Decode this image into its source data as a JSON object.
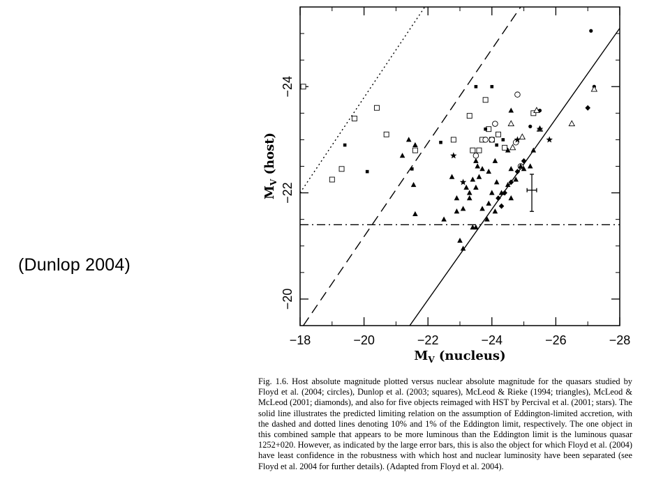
{
  "side_label": "(Dunlop 2004)",
  "chart_data": {
    "type": "scatter",
    "xlabel": {
      "main": "M",
      "sub": "V",
      "rest": " (nucleus)"
    },
    "ylabel": {
      "main": "M",
      "sub": "V",
      "rest": " (host)"
    },
    "xlim": [
      -18,
      -28
    ],
    "ylim": [
      -19.5,
      -25.5
    ],
    "x_ticks": [
      -18,
      -20,
      -22,
      -24,
      -26,
      -28
    ],
    "x_tick_labels": [
      "−18",
      "−20",
      "−22",
      "−24",
      "−26",
      "−28"
    ],
    "y_ticks": [
      -20,
      -22,
      -24
    ],
    "y_tick_labels": [
      "−20",
      "−22",
      "−24"
    ],
    "lines": [
      {
        "style": "solid",
        "points": [
          [
            -21.43,
            -19.5
          ],
          [
            -28.0,
            -25.1
          ]
        ]
      },
      {
        "style": "dashed",
        "points": [
          [
            -18.1,
            -19.5
          ],
          [
            -24.9,
            -25.5
          ]
        ]
      },
      {
        "style": "dotted",
        "points": [
          [
            -18.0,
            -22.0
          ],
          [
            -21.9,
            -25.5
          ]
        ]
      },
      {
        "style": "dashdot",
        "points": [
          [
            -18.0,
            -21.4
          ],
          [
            -28.0,
            -21.4
          ]
        ]
      }
    ],
    "series": [
      {
        "marker": "open-square",
        "points": [
          [
            -18.1,
            -24.0
          ],
          [
            -19.0,
            -22.25
          ],
          [
            -19.3,
            -22.45
          ],
          [
            -19.7,
            -23.4
          ],
          [
            -20.4,
            -23.6
          ],
          [
            -20.7,
            -23.1
          ],
          [
            -21.6,
            -22.8
          ],
          [
            -22.8,
            -23.0
          ],
          [
            -23.3,
            -23.45
          ],
          [
            -23.8,
            -23.75
          ],
          [
            -23.9,
            -23.2
          ],
          [
            -23.7,
            -23.0
          ],
          [
            -23.4,
            -22.8
          ],
          [
            -23.6,
            -22.8
          ],
          [
            -24.0,
            -23.0
          ],
          [
            -24.2,
            -23.1
          ],
          [
            -24.4,
            -22.85
          ],
          [
            -25.3,
            -23.5
          ]
        ]
      },
      {
        "marker": "filled-square",
        "points": [
          [
            -19.4,
            -22.9
          ],
          [
            -20.1,
            -22.4
          ],
          [
            -21.5,
            -22.45
          ],
          [
            -22.4,
            -22.95
          ],
          [
            -23.5,
            -24.0
          ],
          [
            -24.0,
            -24.0
          ],
          [
            -23.8,
            -23.2
          ],
          [
            -24.15,
            -22.9
          ],
          [
            -24.35,
            -23.0
          ]
        ]
      },
      {
        "marker": "open-circle",
        "points": [
          [
            -24.8,
            -23.85
          ],
          [
            -24.1,
            -23.3
          ],
          [
            -23.8,
            -23.0
          ],
          [
            -24.0,
            -23.0
          ],
          [
            -23.5,
            -22.7
          ],
          [
            -24.75,
            -22.95
          ],
          [
            -24.9,
            -22.5
          ]
        ]
      },
      {
        "marker": "filled-circle",
        "points": [
          [
            -27.1,
            -25.05
          ],
          [
            -27.2,
            -24.0
          ],
          [
            -25.5,
            -23.55
          ],
          [
            -25.2,
            -23.25
          ]
        ]
      },
      {
        "marker": "open-triangle",
        "points": [
          [
            -24.6,
            -23.3
          ],
          [
            -24.65,
            -22.85
          ],
          [
            -24.95,
            -23.05
          ],
          [
            -25.4,
            -23.55
          ],
          [
            -25.5,
            -23.2
          ],
          [
            -26.5,
            -23.3
          ],
          [
            -27.2,
            -23.95
          ]
        ]
      },
      {
        "marker": "filled-triangle",
        "points": [
          [
            -21.2,
            -22.7
          ],
          [
            -21.4,
            -23.0
          ],
          [
            -21.6,
            -22.9
          ],
          [
            -21.55,
            -22.15
          ],
          [
            -21.6,
            -21.6
          ],
          [
            -22.5,
            -21.5
          ],
          [
            -22.9,
            -21.9
          ],
          [
            -23.0,
            -21.1
          ],
          [
            -23.1,
            -20.95
          ],
          [
            -23.3,
            -22.0
          ],
          [
            -23.4,
            -22.25
          ],
          [
            -23.5,
            -22.1
          ],
          [
            -23.6,
            -22.3
          ],
          [
            -23.7,
            -21.7
          ],
          [
            -23.85,
            -21.5
          ],
          [
            -23.9,
            -21.8
          ],
          [
            -23.3,
            -21.9
          ],
          [
            -23.5,
            -22.6
          ],
          [
            -23.55,
            -22.5
          ],
          [
            -23.7,
            -22.45
          ],
          [
            -23.9,
            -22.4
          ],
          [
            -24.1,
            -22.6
          ],
          [
            -24.0,
            -22.0
          ],
          [
            -24.1,
            -21.65
          ],
          [
            -24.15,
            -22.2
          ],
          [
            -24.3,
            -22.0
          ],
          [
            -24.5,
            -22.15
          ],
          [
            -24.6,
            -22.45
          ],
          [
            -24.6,
            -21.9
          ],
          [
            -24.75,
            -22.25
          ],
          [
            -24.9,
            -22.5
          ],
          [
            -25.0,
            -22.45
          ],
          [
            -25.3,
            -22.8
          ],
          [
            -25.2,
            -22.5
          ],
          [
            -24.6,
            -23.55
          ],
          [
            -24.5,
            -22.8
          ],
          [
            -23.4,
            -21.35
          ],
          [
            -23.5,
            -21.35
          ],
          [
            -23.2,
            -22.1
          ],
          [
            -23.1,
            -21.7
          ],
          [
            -22.75,
            -22.3
          ],
          [
            -22.9,
            -21.65
          ]
        ]
      },
      {
        "marker": "filled-diamond",
        "points": [
          [
            -24.2,
            -21.9
          ],
          [
            -24.4,
            -22.0
          ],
          [
            -24.6,
            -22.2
          ],
          [
            -24.8,
            -22.4
          ],
          [
            -25.0,
            -22.6
          ],
          [
            -24.3,
            -21.75
          ],
          [
            -27.0,
            -23.6
          ]
        ]
      },
      {
        "marker": "star",
        "points": [
          [
            -22.8,
            -22.7
          ],
          [
            -23.1,
            -22.2
          ],
          [
            -24.8,
            -23.0
          ],
          [
            -25.8,
            -23.0
          ],
          [
            -25.5,
            -23.2
          ]
        ]
      }
    ],
    "error_bar": {
      "x": -25.25,
      "y": -22.05,
      "x_err": 0.15,
      "y_err_low": 0.4,
      "y_err_high": 0.3
    }
  },
  "caption": "Fig. 1.6.  Host absolute magnitude plotted versus nuclear absolute magnitude for the quasars studied by Floyd et al. (2004; circles), Dunlop et al. (2003; squares), McLeod & Rieke (1994; triangles), McLeod & McLeod (2001; diamonds), and also for five objects reimaged with HST by Percival et al. (2001; stars). The solid line illustrates the predicted limiting relation on the assumption of Eddington-limited accretion, with the dashed and dotted lines denoting 10% and 1% of the Eddington limit, respectively. The one object in this combined sample that appears to be more luminous than the Eddington limit is the luminous quasar 1252+020. However, as indicated by the large error bars, this is also the object for which Floyd et al. (2004) have least confidence in the robustness with which host and nuclear luminosity have been separated (see Floyd et al. 2004 for further details). (Adapted from Floyd et al. 2004)."
}
